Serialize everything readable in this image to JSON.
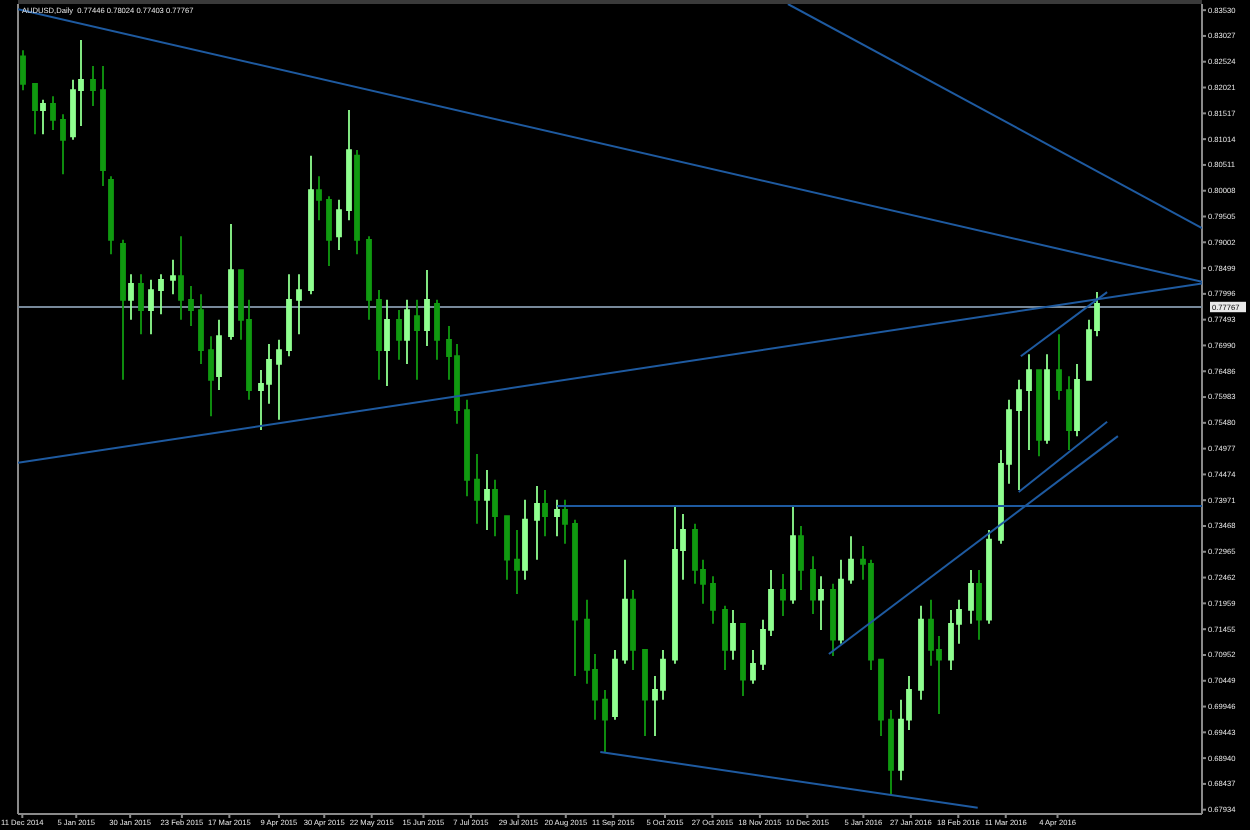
{
  "chart_data": {
    "type": "candlestick",
    "title": "AUDUSD,Daily  0.77446 0.78024 0.77403 0.77767",
    "x": [
      "2014-12-11",
      "2014-12-16",
      "2014-12-20",
      "2014-12-25",
      "2014-12-29",
      "2015-01-03",
      "2015-01-07",
      "2015-01-12",
      "2015-01-17",
      "2015-01-21",
      "2015-01-26",
      "2015-01-30",
      "2015-02-04",
      "2015-02-08",
      "2015-02-13",
      "2015-02-18",
      "2015-02-22",
      "2015-02-27",
      "2015-03-03",
      "2015-03-08",
      "2015-03-12",
      "2015-03-17",
      "2015-03-22",
      "2015-03-26",
      "2015-03-31",
      "2015-04-04",
      "2015-04-09",
      "2015-04-13",
      "2015-04-18",
      "2015-04-23",
      "2015-04-27",
      "2015-05-02",
      "2015-05-06",
      "2015-05-11",
      "2015-05-15",
      "2015-05-20",
      "2015-05-25",
      "2015-05-29",
      "2015-06-03",
      "2015-06-07",
      "2015-06-12",
      "2015-06-16",
      "2015-06-21",
      "2015-06-26",
      "2015-06-30",
      "2015-07-05",
      "2015-07-09",
      "2015-07-14",
      "2015-07-18",
      "2015-07-23",
      "2015-07-28",
      "2015-08-01",
      "2015-08-06",
      "2015-08-10",
      "2015-08-15",
      "2015-08-19",
      "2015-08-24",
      "2015-08-29",
      "2015-09-02",
      "2015-09-07",
      "2015-09-11",
      "2015-09-16",
      "2015-09-20",
      "2015-09-25",
      "2015-09-30",
      "2015-10-04",
      "2015-10-09",
      "2015-10-13",
      "2015-10-18",
      "2015-10-22",
      "2015-10-27",
      "2015-11-01",
      "2015-11-05",
      "2015-11-10",
      "2015-11-14",
      "2015-11-19",
      "2015-11-23",
      "2015-11-28",
      "2015-12-03",
      "2015-12-07",
      "2015-12-12",
      "2015-12-16",
      "2015-12-21",
      "2015-12-25",
      "2015-12-30",
      "2016-01-04",
      "2016-01-08",
      "2016-01-13",
      "2016-01-17",
      "2016-01-22",
      "2016-01-26",
      "2016-01-31",
      "2016-02-05",
      "2016-02-09",
      "2016-02-14",
      "2016-02-18",
      "2016-02-23",
      "2016-02-27",
      "2016-03-03",
      "2016-03-08",
      "2016-03-12",
      "2016-03-17",
      "2016-03-21",
      "2016-03-26",
      "2016-03-30",
      "2016-04-04",
      "2016-04-09",
      "2016-04-13",
      "2016-04-18",
      "2016-04-22"
    ],
    "ohlc": [
      [
        0.8263,
        0.8275,
        0.8197,
        0.8209
      ],
      [
        0.8209,
        0.8209,
        0.8111,
        0.8158
      ],
      [
        0.8158,
        0.8178,
        0.8111,
        0.817
      ],
      [
        0.817,
        0.8185,
        0.8119,
        0.8139
      ],
      [
        0.8139,
        0.815,
        0.8033,
        0.81
      ],
      [
        0.8107,
        0.8217,
        0.81,
        0.8197
      ],
      [
        0.8197,
        0.8295,
        0.8127,
        0.8217
      ],
      [
        0.8217,
        0.8244,
        0.8166,
        0.8197
      ],
      [
        0.8197,
        0.8244,
        0.801,
        0.8041
      ],
      [
        0.8022,
        0.8029,
        0.7877,
        0.7905
      ],
      [
        0.7897,
        0.7905,
        0.7632,
        0.7788
      ],
      [
        0.7788,
        0.7838,
        0.7749,
        0.7819
      ],
      [
        0.7819,
        0.7838,
        0.7721,
        0.7768
      ],
      [
        0.7768,
        0.7827,
        0.7721,
        0.7807
      ],
      [
        0.7807,
        0.7838,
        0.776,
        0.7827
      ],
      [
        0.7827,
        0.7866,
        0.7799,
        0.7834
      ],
      [
        0.7834,
        0.7912,
        0.7749,
        0.7788
      ],
      [
        0.7788,
        0.7815,
        0.7737,
        0.7768
      ],
      [
        0.7768,
        0.7799,
        0.7663,
        0.769
      ],
      [
        0.769,
        0.7717,
        0.7561,
        0.7632
      ],
      [
        0.7639,
        0.7749,
        0.7612,
        0.7717
      ],
      [
        0.7717,
        0.7936,
        0.771,
        0.7846
      ],
      [
        0.7846,
        0.7846,
        0.771,
        0.7749
      ],
      [
        0.7749,
        0.7788,
        0.7593,
        0.7612
      ],
      [
        0.7612,
        0.7651,
        0.7534,
        0.7624
      ],
      [
        0.7624,
        0.7702,
        0.7585,
        0.7671
      ],
      [
        0.7663,
        0.771,
        0.7554,
        0.769
      ],
      [
        0.769,
        0.7838,
        0.7678,
        0.7788
      ],
      [
        0.7788,
        0.7838,
        0.7721,
        0.7807
      ],
      [
        0.7807,
        0.8069,
        0.7799,
        0.8002
      ],
      [
        0.8002,
        0.8029,
        0.7943,
        0.7983
      ],
      [
        0.7983,
        0.799,
        0.7854,
        0.7905
      ],
      [
        0.7912,
        0.7983,
        0.7885,
        0.7963
      ],
      [
        0.7963,
        0.8158,
        0.7943,
        0.808
      ],
      [
        0.8069,
        0.808,
        0.7877,
        0.7905
      ],
      [
        0.7905,
        0.7912,
        0.7749,
        0.7788
      ],
      [
        0.7788,
        0.7807,
        0.7632,
        0.769
      ],
      [
        0.769,
        0.7788,
        0.762,
        0.7749
      ],
      [
        0.7749,
        0.7768,
        0.7671,
        0.771
      ],
      [
        0.771,
        0.7788,
        0.7663,
        0.7768
      ],
      [
        0.7756,
        0.7788,
        0.7632,
        0.7729
      ],
      [
        0.7729,
        0.7846,
        0.7698,
        0.7788
      ],
      [
        0.778,
        0.7788,
        0.7671,
        0.771
      ],
      [
        0.771,
        0.7737,
        0.7632,
        0.7678
      ],
      [
        0.7678,
        0.7702,
        0.7546,
        0.7573
      ],
      [
        0.7573,
        0.7593,
        0.7405,
        0.7437
      ],
      [
        0.7437,
        0.7487,
        0.7351,
        0.7398
      ],
      [
        0.7398,
        0.7456,
        0.7339,
        0.7417
      ],
      [
        0.7417,
        0.7437,
        0.7327,
        0.7366
      ],
      [
        0.7366,
        0.7366,
        0.7242,
        0.7281
      ],
      [
        0.7281,
        0.7339,
        0.7214,
        0.7261
      ],
      [
        0.7261,
        0.7398,
        0.7242,
        0.7359
      ],
      [
        0.7359,
        0.7425,
        0.7281,
        0.739
      ],
      [
        0.739,
        0.7417,
        0.7327,
        0.7366
      ],
      [
        0.7366,
        0.7398,
        0.7327,
        0.7378
      ],
      [
        0.7378,
        0.7398,
        0.7312,
        0.7351
      ],
      [
        0.7351,
        0.7359,
        0.7054,
        0.7164
      ],
      [
        0.7164,
        0.7203,
        0.7039,
        0.7066
      ],
      [
        0.7066,
        0.7097,
        0.6969,
        0.7008
      ],
      [
        0.7008,
        0.7027,
        0.6906,
        0.6969
      ],
      [
        0.6976,
        0.7105,
        0.6969,
        0.7086
      ],
      [
        0.7086,
        0.7281,
        0.7078,
        0.7203
      ],
      [
        0.7203,
        0.7222,
        0.7066,
        0.7105
      ],
      [
        0.7105,
        0.7105,
        0.6937,
        0.7008
      ],
      [
        0.7008,
        0.7054,
        0.6937,
        0.7027
      ],
      [
        0.7027,
        0.7105,
        0.7008,
        0.7086
      ],
      [
        0.7086,
        0.7386,
        0.7078,
        0.73
      ],
      [
        0.73,
        0.737,
        0.7242,
        0.7339
      ],
      [
        0.7339,
        0.7351,
        0.7234,
        0.7261
      ],
      [
        0.7261,
        0.7281,
        0.7195,
        0.7234
      ],
      [
        0.7234,
        0.7249,
        0.7156,
        0.7183
      ],
      [
        0.7183,
        0.7191,
        0.7066,
        0.7105
      ],
      [
        0.7105,
        0.7183,
        0.7086,
        0.7156
      ],
      [
        0.7156,
        0.7156,
        0.7015,
        0.7047
      ],
      [
        0.7047,
        0.7105,
        0.7039,
        0.7078
      ],
      [
        0.7078,
        0.7164,
        0.7066,
        0.7144
      ],
      [
        0.7144,
        0.7261,
        0.7132,
        0.7222
      ],
      [
        0.7222,
        0.7253,
        0.7171,
        0.7203
      ],
      [
        0.7203,
        0.7386,
        0.7195,
        0.7327
      ],
      [
        0.7327,
        0.7347,
        0.7222,
        0.7261
      ],
      [
        0.7261,
        0.7288,
        0.7175,
        0.7203
      ],
      [
        0.7203,
        0.7249,
        0.7144,
        0.7222
      ],
      [
        0.7222,
        0.7234,
        0.7093,
        0.7125
      ],
      [
        0.7125,
        0.7281,
        0.7117,
        0.7242
      ],
      [
        0.7242,
        0.7327,
        0.7234,
        0.7281
      ],
      [
        0.7281,
        0.7308,
        0.7242,
        0.7273
      ],
      [
        0.7273,
        0.7281,
        0.7066,
        0.7086
      ],
      [
        0.7086,
        0.7086,
        0.6937,
        0.6969
      ],
      [
        0.6969,
        0.6988,
        0.6824,
        0.6871
      ],
      [
        0.6871,
        0.7008,
        0.6851,
        0.6969
      ],
      [
        0.6969,
        0.7054,
        0.6949,
        0.7027
      ],
      [
        0.7027,
        0.7191,
        0.7008,
        0.7164
      ],
      [
        0.7164,
        0.7203,
        0.7074,
        0.7105
      ],
      [
        0.7105,
        0.7132,
        0.698,
        0.7086
      ],
      [
        0.7086,
        0.7183,
        0.7066,
        0.7156
      ],
      [
        0.7156,
        0.7203,
        0.7117,
        0.7183
      ],
      [
        0.7183,
        0.7261,
        0.7156,
        0.7234
      ],
      [
        0.7234,
        0.7261,
        0.7125,
        0.7164
      ],
      [
        0.7164,
        0.7339,
        0.7156,
        0.732
      ],
      [
        0.732,
        0.7495,
        0.7312,
        0.7468
      ],
      [
        0.7468,
        0.7593,
        0.7429,
        0.7573
      ],
      [
        0.7573,
        0.7632,
        0.7417,
        0.7612
      ],
      [
        0.7612,
        0.7682,
        0.7495,
        0.7651
      ],
      [
        0.7651,
        0.7651,
        0.7483,
        0.7515
      ],
      [
        0.7515,
        0.7682,
        0.7507,
        0.7651
      ],
      [
        0.7651,
        0.7721,
        0.7593,
        0.7612
      ],
      [
        0.7612,
        0.7639,
        0.7495,
        0.7534
      ],
      [
        0.7534,
        0.7663,
        0.7522,
        0.7632
      ],
      [
        0.7632,
        0.7749,
        0.7632,
        0.7729
      ],
      [
        0.7729,
        0.7803,
        0.7717,
        0.778
      ]
    ],
    "colors": [
      "#109a10",
      "#109a10",
      "#90ff90",
      "#109a10",
      "#109a10",
      "#90ff90",
      "#90ff90",
      "#109a10",
      "#109a10",
      "#109a10",
      "#109a10",
      "#90ff90",
      "#109a10",
      "#90ff90",
      "#90ff90",
      "#90ff90",
      "#109a10",
      "#109a10",
      "#109a10",
      "#109a10",
      "#90ff90",
      "#90ff90",
      "#109a10",
      "#109a10",
      "#90ff90",
      "#90ff90",
      "#90ff90",
      "#90ff90",
      "#90ff90",
      "#90ff90",
      "#109a10",
      "#109a10",
      "#90ff90",
      "#90ff90",
      "#109a10",
      "#109a10",
      "#109a10",
      "#90ff90",
      "#109a10",
      "#90ff90",
      "#109a10",
      "#90ff90",
      "#109a10",
      "#109a10",
      "#109a10",
      "#109a10",
      "#109a10",
      "#90ff90",
      "#109a10",
      "#109a10",
      "#109a10",
      "#90ff90",
      "#90ff90",
      "#109a10",
      "#90ff90",
      "#109a10",
      "#109a10",
      "#109a10",
      "#109a10",
      "#109a10",
      "#90ff90",
      "#90ff90",
      "#109a10",
      "#109a10",
      "#90ff90",
      "#90ff90",
      "#90ff90",
      "#90ff90",
      "#109a10",
      "#109a10",
      "#109a10",
      "#109a10",
      "#90ff90",
      "#109a10",
      "#90ff90",
      "#90ff90",
      "#90ff90",
      "#109a10",
      "#90ff90",
      "#109a10",
      "#109a10",
      "#90ff90",
      "#109a10",
      "#90ff90",
      "#90ff90",
      "#109a10",
      "#109a10",
      "#109a10",
      "#109a10",
      "#90ff90",
      "#90ff90",
      "#90ff90",
      "#109a10",
      "#109a10",
      "#90ff90",
      "#90ff90",
      "#90ff90",
      "#109a10",
      "#90ff90",
      "#90ff90",
      "#90ff90",
      "#90ff90",
      "#90ff90",
      "#109a10",
      "#90ff90",
      "#109a10",
      "#109a10",
      "#90ff90",
      "#90ff90",
      "#90ff90"
    ],
    "series": [
      {
        "type": "line",
        "x": [
          "2015-12-01",
          "2016-06-10"
        ],
        "values": [
          0.8365,
          0.7928
        ],
        "color": "#1e5aa0"
      },
      {
        "type": "line",
        "x": [
          "2014-12-09",
          "2016-06-10"
        ],
        "values": [
          0.8355,
          0.7823
        ],
        "color": "#1e5aa0"
      },
      {
        "type": "line",
        "x": [
          "2014-12-09",
          "2016-06-10"
        ],
        "values": [
          0.747,
          0.782
        ],
        "color": "#1e5aa0"
      },
      {
        "type": "line",
        "x": [
          "2015-08-16",
          "2016-06-10"
        ],
        "values": [
          0.7386,
          0.7386
        ],
        "color": "#1e5aa0"
      },
      {
        "type": "line",
        "x": [
          "2015-09-05",
          "2016-02-27"
        ],
        "values": [
          0.6906,
          0.6797
        ],
        "color": "#1e5aa0"
      },
      {
        "type": "line",
        "x": [
          "2015-12-20",
          "2016-05-02"
        ],
        "values": [
          0.7097,
          0.7522
        ],
        "color": "#1e5aa0"
      },
      {
        "type": "line",
        "x": [
          "2016-03-17",
          "2016-04-27"
        ],
        "values": [
          0.7413,
          0.755
        ],
        "color": "#1e5aa0"
      },
      {
        "type": "line",
        "x": [
          "2016-03-18",
          "2016-04-27"
        ],
        "values": [
          0.7678,
          0.7803
        ],
        "color": "#1e5aa0"
      }
    ],
    "ref_lines": [
      {
        "axis": "y",
        "value": 0.77767,
        "label": "0.77767",
        "color": "#778899"
      }
    ],
    "xlim": [
      "2014-12-09",
      "2016-06-10"
    ],
    "ylim": [
      0.6785,
      0.8365
    ],
    "xticks": [
      {
        "value": "2014-12-11",
        "label": "11 Dec 2014"
      },
      {
        "value": "2015-01-05",
        "label": "5 Jan 2015"
      },
      {
        "value": "2015-01-30",
        "label": "30 Jan 2015"
      },
      {
        "value": "2015-02-23",
        "label": "23 Feb 2015"
      },
      {
        "value": "2015-03-17",
        "label": "17 Mar 2015"
      },
      {
        "value": "2015-04-09",
        "label": "9 Apr 2015"
      },
      {
        "value": "2015-04-30",
        "label": "30 Apr 2015"
      },
      {
        "value": "2015-05-22",
        "label": "22 May 2015"
      },
      {
        "value": "2015-06-15",
        "label": "15 Jun 2015"
      },
      {
        "value": "2015-07-07",
        "label": "7 Jul 2015"
      },
      {
        "value": "2015-07-29",
        "label": "29 Jul 2015"
      },
      {
        "value": "2015-08-20",
        "label": "20 Aug 2015"
      },
      {
        "value": "2015-09-11",
        "label": "11 Sep 2015"
      },
      {
        "value": "2015-10-05",
        "label": "5 Oct 2015"
      },
      {
        "value": "2015-10-27",
        "label": "27 Oct 2015"
      },
      {
        "value": "2015-11-18",
        "label": "18 Nov 2015"
      },
      {
        "value": "2015-12-10",
        "label": "10 Dec 2015"
      },
      {
        "value": "2016-01-05",
        "label": "5 Jan 2016"
      },
      {
        "value": "2016-01-27",
        "label": "27 Jan 2016"
      },
      {
        "value": "2016-02-18",
        "label": "18 Feb 2016"
      },
      {
        "value": "2016-03-11",
        "label": "11 Mar 2016"
      },
      {
        "value": "2016-04-04",
        "label": "4 Apr 2016"
      }
    ],
    "yticks": [
      {
        "value": 0.8353,
        "label": "0.83530"
      },
      {
        "value": 0.83027,
        "label": "0.83027"
      },
      {
        "value": 0.82524,
        "label": "0.82524"
      },
      {
        "value": 0.82021,
        "label": "0.82021"
      },
      {
        "value": 0.81517,
        "label": "0.81517"
      },
      {
        "value": 0.81014,
        "label": "0.81014"
      },
      {
        "value": 0.80511,
        "label": "0.80511"
      },
      {
        "value": 0.80008,
        "label": "0.80008"
      },
      {
        "value": 0.79505,
        "label": "0.79505"
      },
      {
        "value": 0.79002,
        "label": "0.79002"
      },
      {
        "value": 0.78499,
        "label": "0.78499"
      },
      {
        "value": 0.77996,
        "label": "0.77996"
      },
      {
        "value": 0.77493,
        "label": "0.77493"
      },
      {
        "value": 0.7699,
        "label": "0.76990"
      },
      {
        "value": 0.76486,
        "label": "0.76486"
      },
      {
        "value": 0.75983,
        "label": "0.75983"
      },
      {
        "value": 0.7548,
        "label": "0.75480"
      },
      {
        "value": 0.74977,
        "label": "0.74977"
      },
      {
        "value": 0.74474,
        "label": "0.74474"
      },
      {
        "value": 0.73971,
        "label": "0.73971"
      },
      {
        "value": 0.73468,
        "label": "0.73468"
      },
      {
        "value": 0.72965,
        "label": "0.72965"
      },
      {
        "value": 0.72462,
        "label": "0.72462"
      },
      {
        "value": 0.71959,
        "label": "0.71959"
      },
      {
        "value": 0.71455,
        "label": "0.71455"
      },
      {
        "value": 0.70952,
        "label": "0.70952"
      },
      {
        "value": 0.70449,
        "label": "0.70449"
      },
      {
        "value": 0.69946,
        "label": "0.69946"
      },
      {
        "value": 0.69443,
        "label": "0.69443"
      },
      {
        "value": 0.6894,
        "label": "0.68940"
      },
      {
        "value": 0.68437,
        "label": "0.68437"
      },
      {
        "value": 0.67934,
        "label": "0.67934"
      }
    ]
  }
}
